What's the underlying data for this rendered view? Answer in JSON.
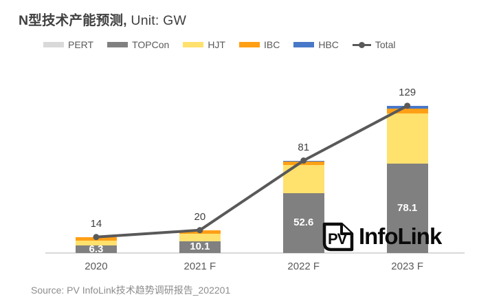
{
  "title": {
    "main": "N型技术产能预测,",
    "unit": " Unit: GW"
  },
  "source": "Source: PV InfoLink技术趋势调研报告_202201",
  "logo": {
    "icon_text": "PV",
    "name_bold": "Info",
    "name_regular": "Link"
  },
  "colors": {
    "pert": "#d9d9d9",
    "topcon": "#808080",
    "hjt": "#ffe16e",
    "ibc": "#ff9f15",
    "hbc": "#4878c8",
    "total_line": "#595959",
    "axis": "#d9d9d9",
    "label_dark": "#404040",
    "tick_text": "#595959"
  },
  "chart_data": {
    "type": "bar",
    "subtype": "stacked-bars-with-total-line",
    "title": "N型技术产能预测, Unit: GW",
    "unit": "GW",
    "categories": [
      "2020",
      "2021 F",
      "2022 F",
      "2023 F"
    ],
    "series": [
      {
        "name": "PERT",
        "color": "#d9d9d9",
        "values": [
          0.1,
          0.1,
          0.1,
          0.1
        ]
      },
      {
        "name": "TOPCon",
        "color": "#808080",
        "values": [
          6.3,
          10.1,
          52.6,
          78.1
        ],
        "data_labels": [
          "6.3",
          "10.1",
          "52.6",
          "78.1"
        ]
      },
      {
        "name": "HJT",
        "color": "#ffe16e",
        "values": [
          4.6,
          6.8,
          24.5,
          44.2
        ]
      },
      {
        "name": "IBC",
        "color": "#ff9f15",
        "values": [
          3.0,
          3.0,
          3.0,
          4.0
        ]
      },
      {
        "name": "HBC",
        "color": "#4878c8",
        "values": [
          0.0,
          0.0,
          0.8,
          2.6
        ]
      }
    ],
    "line": {
      "name": "Total",
      "color": "#595959",
      "values": [
        14,
        20,
        81,
        129
      ],
      "data_labels": [
        "14",
        "20",
        "81",
        "129"
      ]
    },
    "ylim": [
      0,
      140
    ],
    "grid": false,
    "legend_position": "top"
  }
}
